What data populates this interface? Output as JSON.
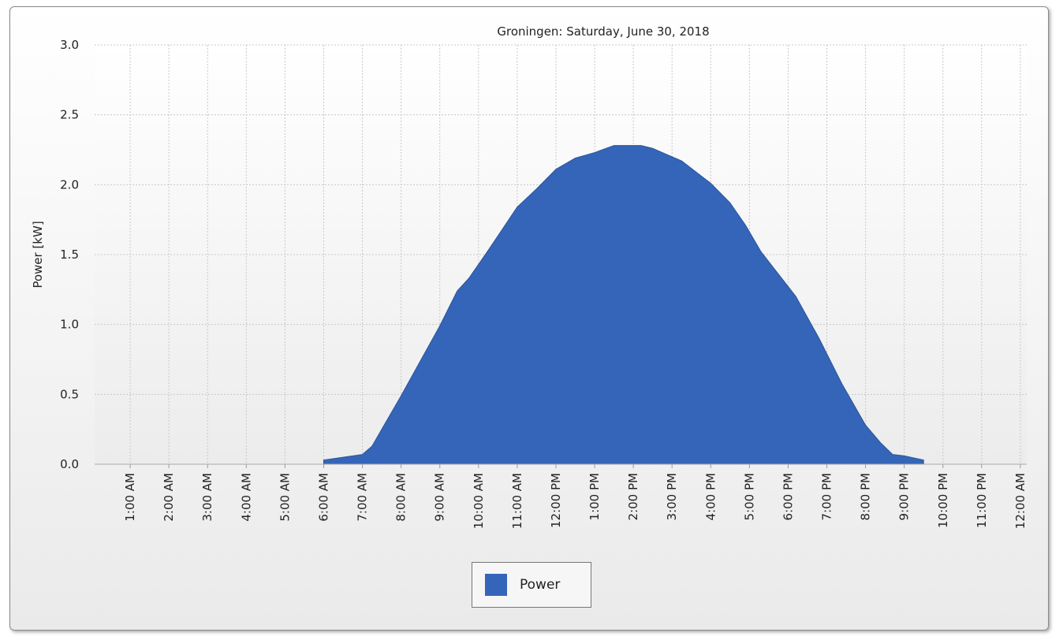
{
  "chart_data": {
    "type": "area",
    "title": "Groningen: Saturday, June 30, 2018",
    "xlabel": "",
    "ylabel": "Power [kW]",
    "ylim": [
      0,
      3.0
    ],
    "xlim_hours": [
      0,
      24
    ],
    "yticks": [
      "0.0",
      "0.5",
      "1.0",
      "1.5",
      "2.0",
      "2.5",
      "3.0"
    ],
    "xticks": [
      "1:00 AM",
      "2:00 AM",
      "3:00 AM",
      "4:00 AM",
      "5:00 AM",
      "6:00 AM",
      "7:00 AM",
      "8:00 AM",
      "9:00 AM",
      "10:00 AM",
      "11:00 AM",
      "12:00 PM",
      "1:00 PM",
      "2:00 PM",
      "3:00 PM",
      "4:00 PM",
      "5:00 PM",
      "6:00 PM",
      "7:00 PM",
      "8:00 PM",
      "9:00 PM",
      "10:00 PM",
      "11:00 PM",
      "12:00 AM"
    ],
    "grid": true,
    "legend_position": "bottom",
    "series": [
      {
        "name": "Power",
        "color": "#3465b8",
        "x_hours": [
          6.0,
          7.0,
          7.25,
          7.5,
          8.0,
          8.5,
          9.0,
          9.45,
          9.75,
          10.25,
          11.0,
          11.5,
          12.0,
          12.5,
          13.0,
          13.5,
          14.0,
          14.2,
          14.5,
          14.75,
          15.25,
          16.0,
          16.5,
          16.9,
          17.3,
          17.75,
          18.2,
          18.8,
          19.4,
          20.0,
          20.4,
          20.7,
          21.0,
          21.5
        ],
        "values": [
          0.03,
          0.07,
          0.13,
          0.25,
          0.49,
          0.74,
          0.99,
          1.24,
          1.33,
          1.53,
          1.84,
          1.97,
          2.11,
          2.19,
          2.23,
          2.28,
          2.28,
          2.28,
          2.26,
          2.23,
          2.17,
          2.01,
          1.87,
          1.71,
          1.52,
          1.36,
          1.2,
          0.9,
          0.57,
          0.28,
          0.15,
          0.07,
          0.06,
          0.03
        ]
      }
    ]
  }
}
